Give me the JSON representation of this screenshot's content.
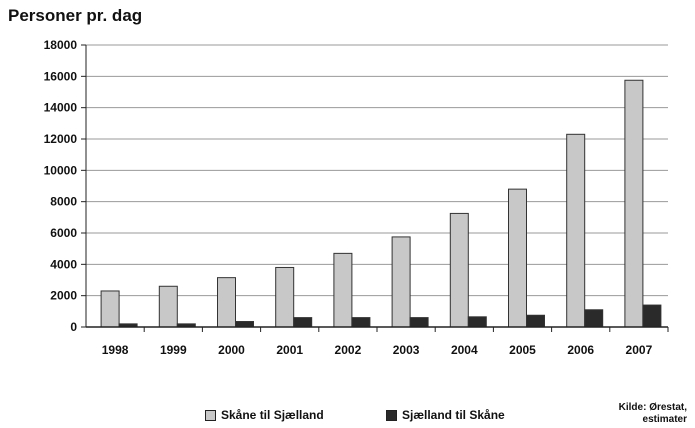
{
  "chart_data": {
    "type": "bar",
    "title": "Personer pr. dag",
    "categories": [
      "1998",
      "1999",
      "2000",
      "2001",
      "2002",
      "2003",
      "2004",
      "2005",
      "2006",
      "2007"
    ],
    "series": [
      {
        "name": "Skåne til Sjælland",
        "color": "#c8c8c8",
        "values": [
          2300,
          2600,
          3150,
          3800,
          4700,
          5750,
          7250,
          8800,
          12300,
          15750
        ]
      },
      {
        "name": "Sjælland til Skåne",
        "color": "#2a2a2a",
        "values": [
          200,
          200,
          350,
          600,
          600,
          600,
          650,
          750,
          1100,
          1400
        ]
      }
    ],
    "ylim": [
      0,
      18000
    ],
    "yticks": [
      0,
      2000,
      4000,
      6000,
      8000,
      10000,
      12000,
      14000,
      16000,
      18000
    ],
    "grid": true,
    "legend_position": "bottom"
  },
  "source_lines": [
    "Kilde: Ørestat,",
    "estimater"
  ]
}
